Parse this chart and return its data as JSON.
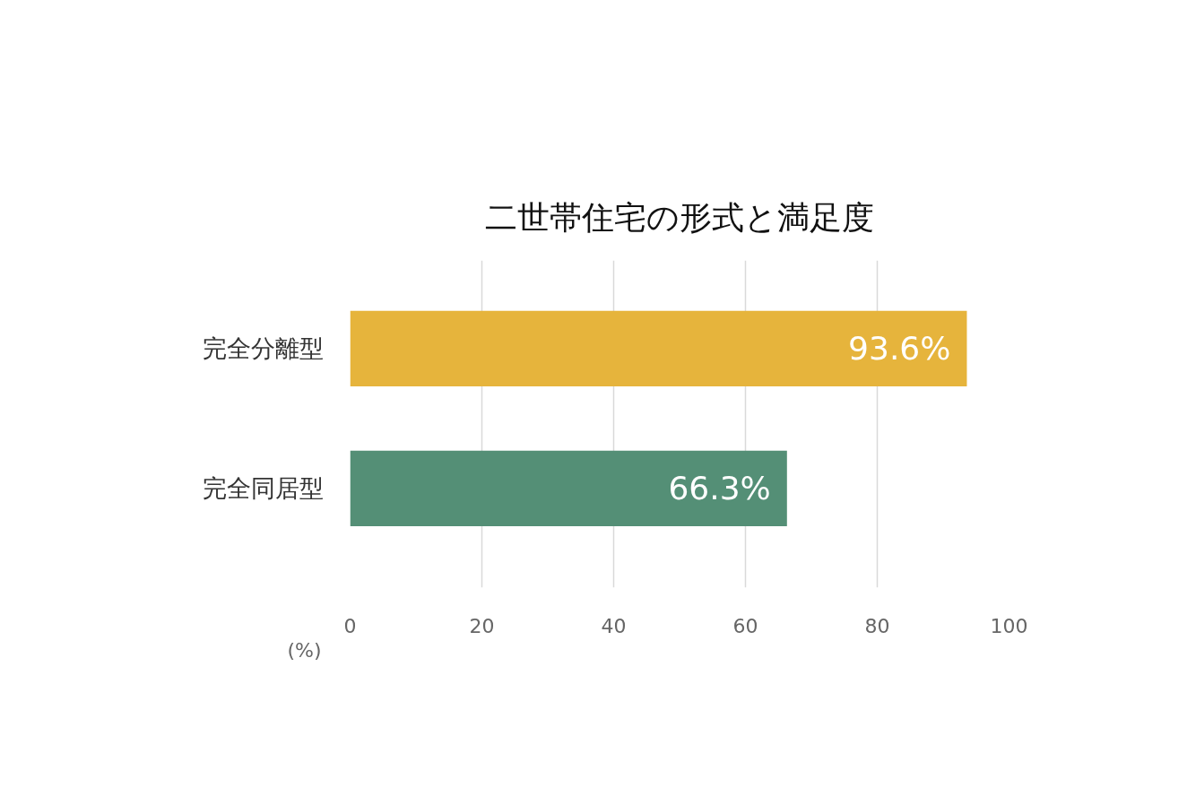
{
  "chart_data": {
    "type": "bar",
    "orientation": "horizontal",
    "title": "二世帯住宅の形式と満足度",
    "xlabel": "(%)",
    "categories": [
      "完全分離型",
      "完全同居型"
    ],
    "values": [
      93.6,
      66.3
    ],
    "colors": [
      "#e6b43c",
      "#548f76"
    ],
    "value_labels": [
      "93.6%",
      "66.3%"
    ],
    "xlim": [
      0,
      100
    ],
    "xticks": [
      0,
      20,
      40,
      60,
      80,
      100
    ],
    "grid": "x",
    "legend": false
  }
}
